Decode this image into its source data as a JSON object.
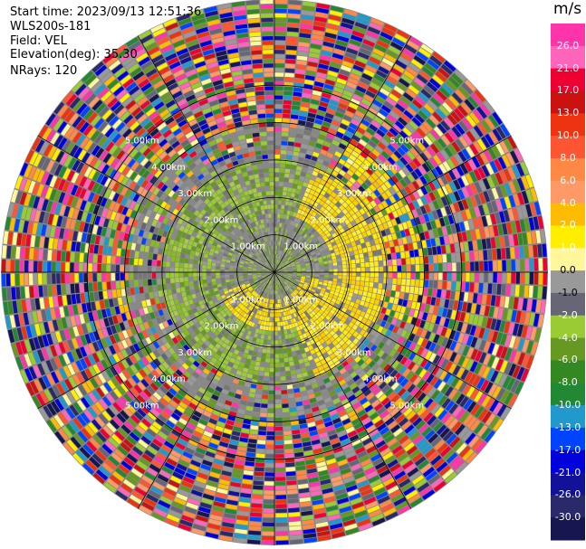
{
  "header": {
    "start_time": "Start time: 2023/09/13 12:51:36",
    "instrument": "WLS200s-181",
    "field": "Field: VEL",
    "elevation": "Elevation(deg): 35.30",
    "nrays": "NRays: 120"
  },
  "colorbar": {
    "unit": "m/s",
    "ticks": [
      "26.0",
      "21.0",
      "17.0",
      "13.0",
      "10.0",
      "8.0",
      "6.0",
      "4.0",
      "2.0",
      "1.0",
      "0.0",
      "-1.0",
      "-2.0",
      "-4.0",
      "-6.0",
      "-8.0",
      "-10.0",
      "-13.0",
      "-17.0",
      "-21.0",
      "-26.0",
      "-30.0"
    ],
    "colors": [
      "#ff33aa",
      "#ff66bb",
      "#ee0033",
      "#cc1111",
      "#ee3311",
      "#ff5533",
      "#ff8844",
      "#ff9966",
      "#ffbb00",
      "#ffee00",
      "#fff799",
      "#999999",
      "#666677",
      "#99cc33",
      "#669922",
      "#338822",
      "#228833",
      "#2299cc",
      "#0044ff",
      "#0000dd",
      "#111199",
      "#2a2a6a",
      "#161650"
    ]
  },
  "chart_data": {
    "type": "ppi",
    "field": "VEL",
    "units": "m/s",
    "nrays": 120,
    "range_rings_km": [
      1.0,
      2.0,
      3.0,
      4.0,
      5.0
    ],
    "ring_labels": [
      "1.00km",
      "2.00km",
      "3.00km",
      "4.00km",
      "5.00km"
    ],
    "max_range_km": 7.3
  }
}
